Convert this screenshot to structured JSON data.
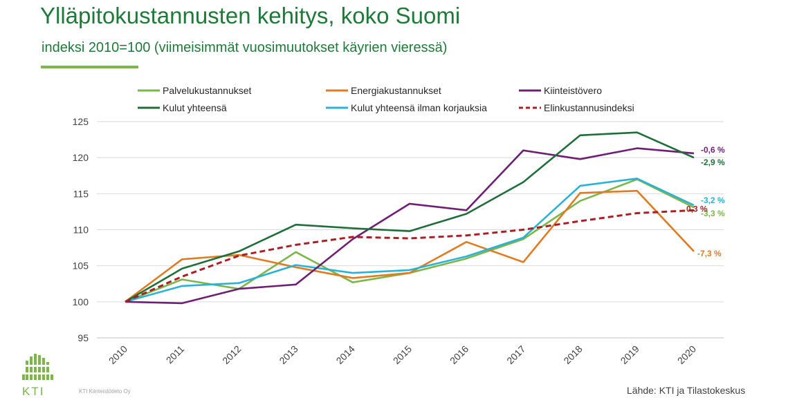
{
  "header": {
    "title": "Ylläpitokustannusten kehitys, koko Suomi",
    "subtitle": "indeksi 2010=100 (viimeisimmät vuosimuutokset käyrien vieressä)"
  },
  "footer": {
    "source": "Lähde: KTI ja Tilastokeskus",
    "company": "KTI Kiinteistötieto Oy",
    "logo_text": "KTI"
  },
  "chart_data": {
    "type": "line",
    "title": "Ylläpitokustannusten kehitys, koko Suomi",
    "subtitle": "indeksi 2010=100 (viimeisimmät vuosimuutokset käyrien vieressä)",
    "x": [
      "2010",
      "2011",
      "2012",
      "2013",
      "2014",
      "2015",
      "2016",
      "2017",
      "2018",
      "2019",
      "2020"
    ],
    "ylim": [
      95,
      125
    ],
    "yticks": [
      95,
      100,
      105,
      110,
      115,
      120,
      125
    ],
    "grid": true,
    "legend_position": "top",
    "series": [
      {
        "name": "Palvelukustannukset",
        "color": "#7ab648",
        "dashed": false,
        "values": [
          100,
          103.1,
          101.8,
          106.9,
          102.7,
          104.0,
          106.0,
          108.7,
          114.0,
          117.0,
          113.1
        ],
        "end_label": "-3,3 %"
      },
      {
        "name": "Energiakustannukset",
        "color": "#e07b22",
        "dashed": false,
        "values": [
          100,
          105.9,
          106.5,
          104.8,
          103.3,
          104.0,
          108.3,
          105.5,
          115.1,
          115.4,
          107.0
        ],
        "end_label": "-7,3 %"
      },
      {
        "name": "Kiinteistövero",
        "color": "#6e1f74",
        "dashed": false,
        "values": [
          100,
          99.8,
          101.8,
          102.4,
          108.7,
          113.6,
          112.7,
          121.0,
          119.8,
          121.3,
          120.6
        ],
        "end_label": "-0,6 %"
      },
      {
        "name": "Kulut yhteensä",
        "color": "#1f6e3a",
        "dashed": false,
        "values": [
          100,
          104.6,
          107.0,
          110.7,
          110.2,
          109.8,
          112.2,
          116.6,
          123.1,
          123.5,
          120.0
        ],
        "end_label": "-2,9 %"
      },
      {
        "name": "Kulut yhteensä ilman korjauksia",
        "color": "#2ab2d6",
        "dashed": false,
        "values": [
          100,
          102.2,
          102.6,
          105.1,
          104.0,
          104.4,
          106.3,
          108.9,
          116.1,
          117.1,
          113.4
        ],
        "end_label": "-3,2 %"
      },
      {
        "name": "Elinkustannusindeksi",
        "color": "#a81f24",
        "dashed": true,
        "values": [
          100,
          103.5,
          106.4,
          107.9,
          109.0,
          108.8,
          109.2,
          110.0,
          111.2,
          112.3,
          112.7
        ],
        "end_label": "0,3 %"
      }
    ]
  }
}
